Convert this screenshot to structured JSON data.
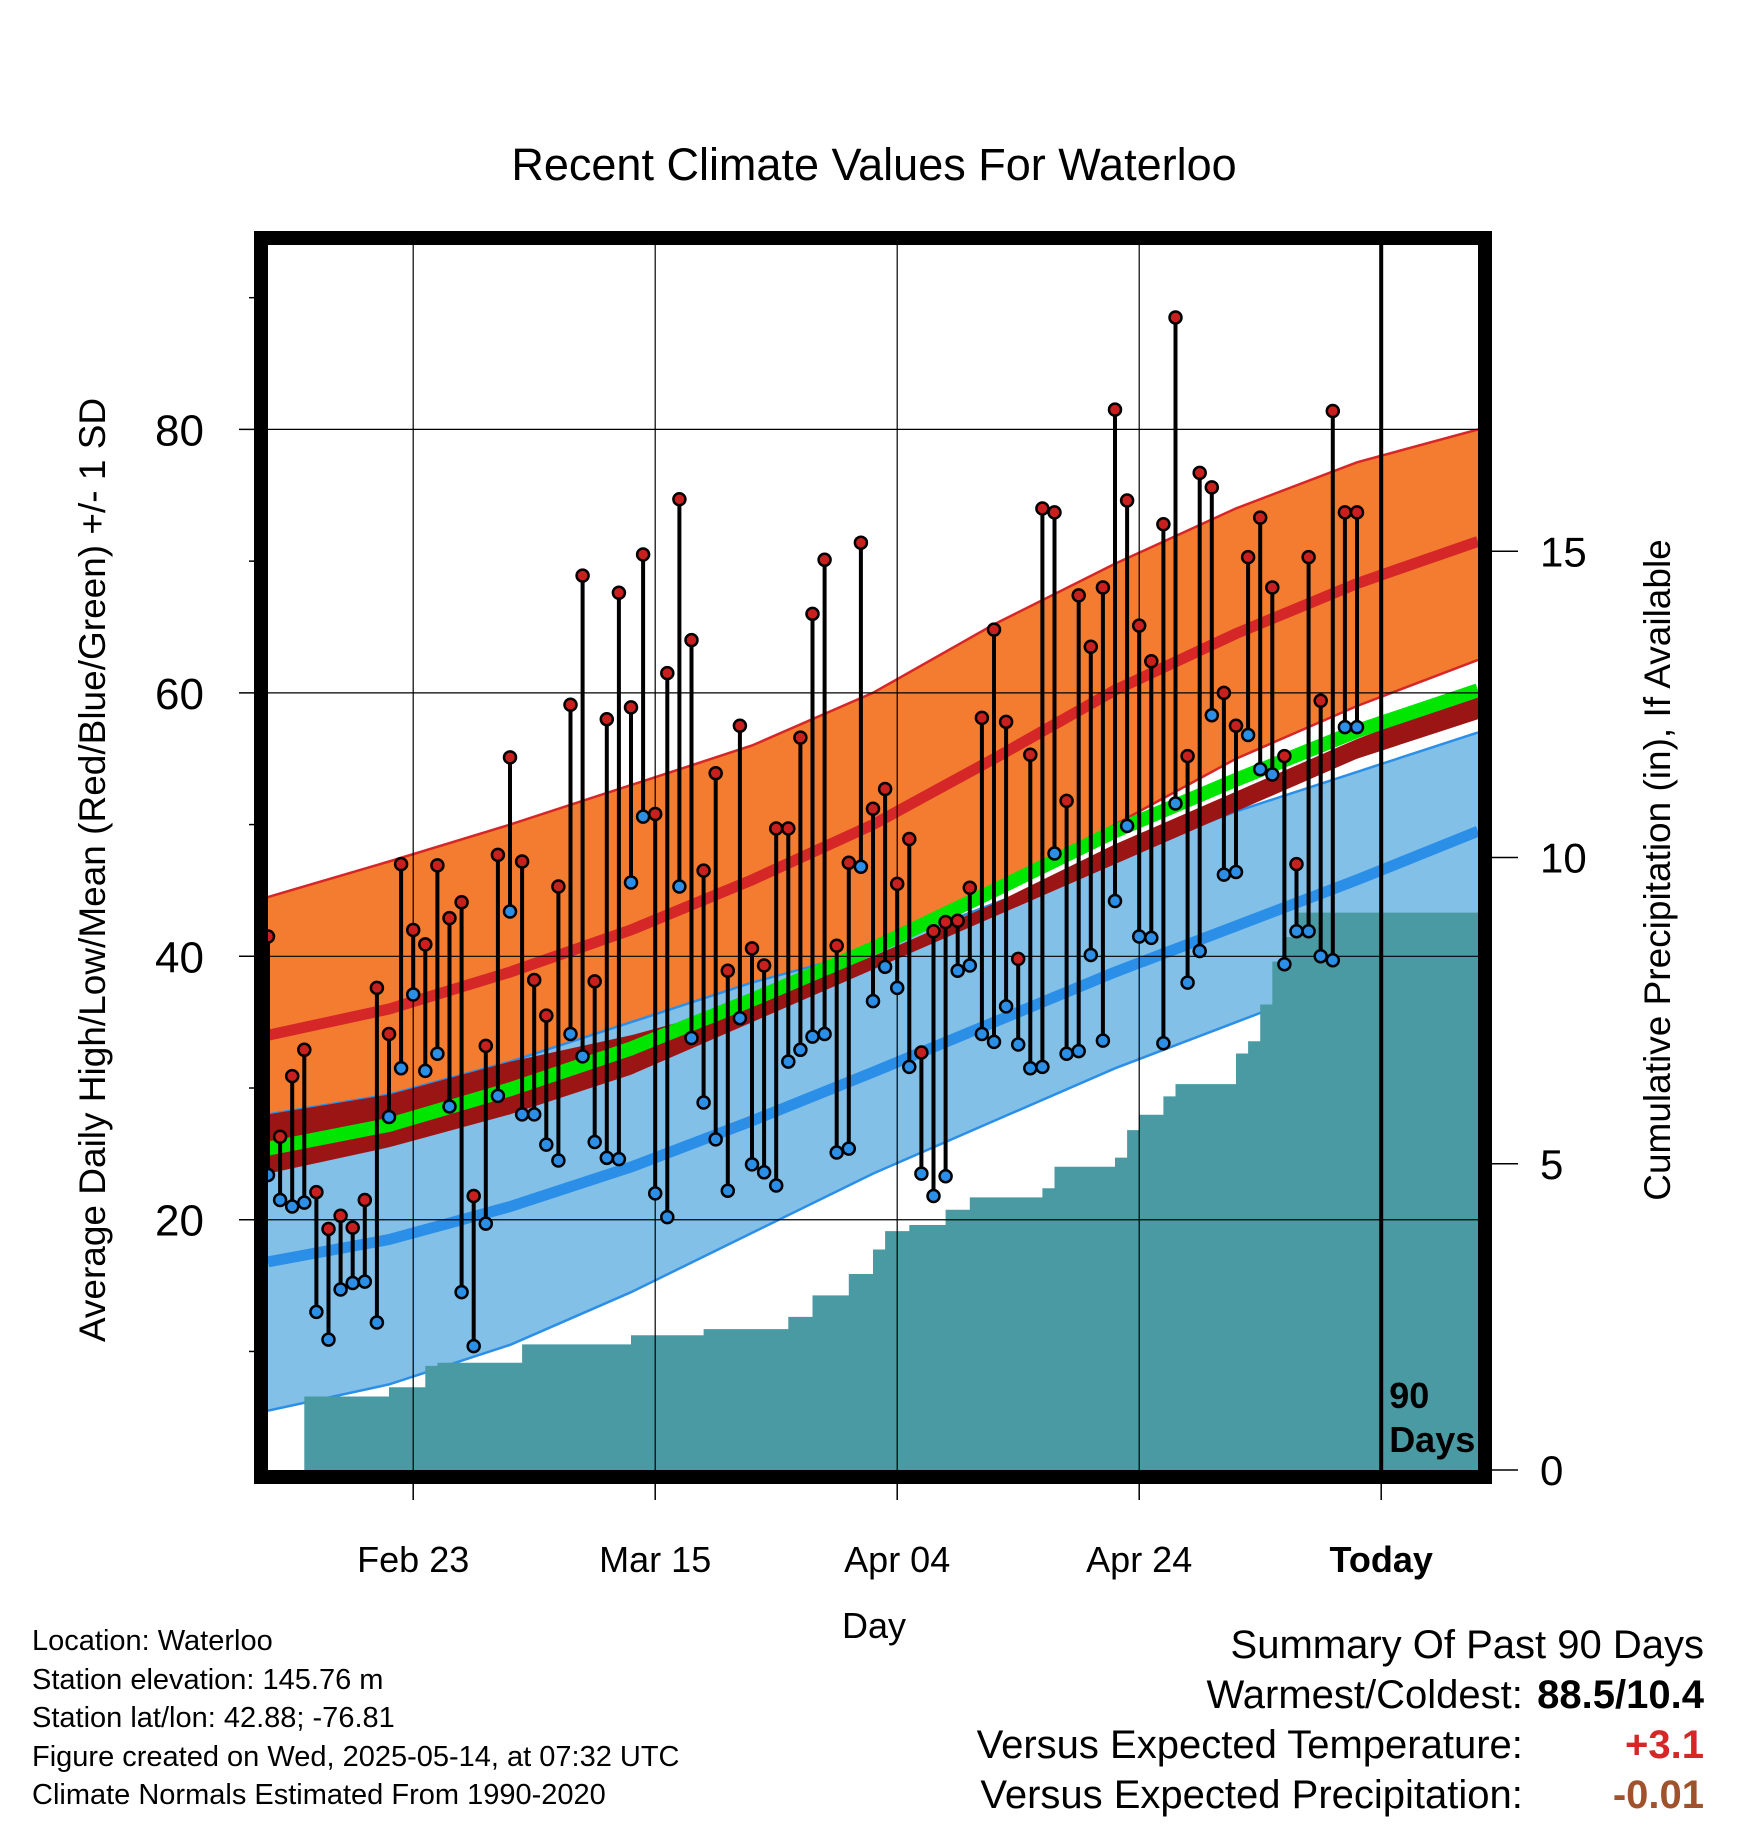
{
  "chart_data": {
    "type": "line",
    "title": "Recent Climate Values For Waterloo",
    "xlabel": "Day",
    "ylabel": "Average Daily High/Low/Mean (Red/Blue/Green) +/- 1 SD",
    "y2label": "Cumulative Precipitation (in), If Available",
    "x_ticks": [
      "Feb 23",
      "Mar 15",
      "Apr 04",
      "Apr 24",
      "Today"
    ],
    "x_tick_days": [
      12,
      32,
      52,
      72,
      92
    ],
    "xlim": [
      0,
      100
    ],
    "ylim": [
      1,
      94
    ],
    "y_ticks": [
      20,
      40,
      60,
      80
    ],
    "y2lim": [
      0,
      20
    ],
    "y2_ticks": [
      0,
      5,
      10,
      15
    ],
    "today_label": "90 Days",
    "grid": true,
    "colors": {
      "high_band": "#f47c30",
      "high_mean": "#d62728",
      "low_band": "#82c0e8",
      "low_mean": "#2b8fe8",
      "mean_band": "#9c1515",
      "mean_line": "#00e600",
      "precip": "#4a9aa4",
      "high_dot": "#c8201e",
      "low_dot": "#2b8fe8"
    },
    "normals": {
      "days": [
        0,
        10,
        20,
        30,
        40,
        50,
        60,
        70,
        80,
        90,
        100
      ],
      "high_mean": [
        34.0,
        36.0,
        38.8,
        42.0,
        45.8,
        50.0,
        55.0,
        60.2,
        64.5,
        68.3,
        71.5
      ],
      "high_sd_upper": [
        44.5,
        47.2,
        50.0,
        53.0,
        56.0,
        60.0,
        65.2,
        69.8,
        74.0,
        77.5,
        80.0
      ],
      "high_sd_lower": [
        24.5,
        26.0,
        28.0,
        31.0,
        35.0,
        40.0,
        45.0,
        50.0,
        55.0,
        59.0,
        62.5
      ],
      "low_mean": [
        16.8,
        18.5,
        21.0,
        24.0,
        27.5,
        31.2,
        35.0,
        38.8,
        42.3,
        45.8,
        49.5
      ],
      "low_sd_upper": [
        28.0,
        29.5,
        32.0,
        35.0,
        38.0,
        40.5,
        44.0,
        47.5,
        51.0,
        54.0,
        57.0
      ],
      "low_sd_lower": [
        5.5,
        7.5,
        10.5,
        14.5,
        19.0,
        23.5,
        27.5,
        31.5,
        35.0,
        38.5,
        42.0
      ],
      "mean_line": [
        25.4,
        27.2,
        29.9,
        33.0,
        36.7,
        40.6,
        45.0,
        49.5,
        53.4,
        57.1,
        60.2
      ],
      "mean_sd_upper": [
        28.0,
        29.5,
        32.0,
        34.0,
        36.5,
        40.0,
        44.0,
        48.5,
        52.5,
        56.5,
        60.0
      ],
      "mean_sd_lower": [
        23.5,
        25.5,
        28.0,
        31.0,
        35.0,
        39.0,
        43.0,
        47.0,
        51.0,
        55.0,
        58.0
      ]
    },
    "series": [
      {
        "name": "High",
        "x": [
          0,
          1,
          2,
          3,
          4,
          5,
          6,
          7,
          8,
          9,
          10,
          11,
          12,
          13,
          14,
          15,
          16,
          17,
          18,
          19,
          20,
          21,
          22,
          23,
          24,
          25,
          26,
          27,
          28,
          29,
          30,
          31,
          32,
          33,
          34,
          35,
          36,
          37,
          38,
          39,
          40,
          41,
          42,
          43,
          44,
          45,
          46,
          47,
          48,
          49,
          50,
          51,
          52,
          53,
          54,
          55,
          56,
          57,
          58,
          59,
          60,
          61,
          62,
          63,
          64,
          65,
          66,
          67,
          68,
          69,
          70,
          71,
          72,
          73,
          74,
          75,
          76,
          77,
          78,
          79,
          80,
          81,
          82,
          83,
          84,
          85,
          86,
          87,
          88,
          89,
          90
        ],
        "values": [
          41.5,
          26.3,
          30.9,
          32.9,
          22.1,
          19.3,
          20.3,
          19.4,
          21.5,
          37.6,
          34.1,
          47.0,
          42.0,
          40.9,
          46.9,
          42.9,
          44.1,
          21.8,
          33.2,
          47.7,
          55.1,
          47.2,
          38.2,
          35.5,
          45.3,
          59.1,
          68.9,
          38.1,
          58.0,
          67.6,
          58.9,
          70.5,
          50.8,
          61.5,
          74.7,
          64.0,
          46.5,
          53.9,
          38.9,
          57.5,
          40.6,
          39.3,
          49.7,
          49.7,
          56.6,
          66.0,
          70.1,
          40.8,
          47.1,
          71.4,
          51.2,
          52.7,
          45.5,
          48.9,
          32.7,
          41.9,
          42.6,
          42.7,
          45.2,
          58.1,
          64.8,
          57.8,
          39.8,
          55.3,
          74.0,
          73.7,
          51.8,
          67.4,
          63.5,
          68.0,
          81.5,
          74.6,
          65.1,
          62.4,
          72.8,
          88.5,
          55.2,
          76.7,
          75.6,
          60.0,
          57.5,
          70.3,
          73.3,
          68.0,
          55.2,
          47.0,
          70.3,
          59.4,
          81.4,
          73.7,
          73.7
        ]
      },
      {
        "name": "Low",
        "x": [
          0,
          1,
          2,
          3,
          4,
          5,
          6,
          7,
          8,
          9,
          10,
          11,
          12,
          13,
          14,
          15,
          16,
          17,
          18,
          19,
          20,
          21,
          22,
          23,
          24,
          25,
          26,
          27,
          28,
          29,
          30,
          31,
          32,
          33,
          34,
          35,
          36,
          37,
          38,
          39,
          40,
          41,
          42,
          43,
          44,
          45,
          46,
          47,
          48,
          49,
          50,
          51,
          52,
          53,
          54,
          55,
          56,
          57,
          58,
          59,
          60,
          61,
          62,
          63,
          64,
          65,
          66,
          67,
          68,
          69,
          70,
          71,
          72,
          73,
          74,
          75,
          76,
          77,
          78,
          79,
          80,
          81,
          82,
          83,
          84,
          85,
          86,
          87,
          88,
          89,
          90
        ],
        "values": [
          23.4,
          21.5,
          21.0,
          21.3,
          13.0,
          10.9,
          14.7,
          15.2,
          15.3,
          12.2,
          27.8,
          31.5,
          37.1,
          31.3,
          32.6,
          28.6,
          14.5,
          10.4,
          19.7,
          29.4,
          43.4,
          28.0,
          28.0,
          25.7,
          24.5,
          34.1,
          32.4,
          25.9,
          24.7,
          24.6,
          45.6,
          50.6,
          22.0,
          20.2,
          45.3,
          33.8,
          28.9,
          26.1,
          22.2,
          35.3,
          24.2,
          23.6,
          22.6,
          32.0,
          32.9,
          33.9,
          34.1,
          25.1,
          25.4,
          46.8,
          36.6,
          39.2,
          37.6,
          31.6,
          23.5,
          21.8,
          23.3,
          38.9,
          39.3,
          34.1,
          33.5,
          36.2,
          33.3,
          31.5,
          31.6,
          47.8,
          32.6,
          32.8,
          40.1,
          33.6,
          44.2,
          49.9,
          41.5,
          41.4,
          33.4,
          51.6,
          38.0,
          40.4,
          58.3,
          46.2,
          46.4,
          56.8,
          54.2,
          53.8,
          39.4,
          41.9,
          41.9,
          40.0,
          39.7,
          57.4,
          57.4
        ]
      }
    ],
    "precip": {
      "x": [
        0,
        2,
        3,
        10,
        13,
        14,
        19,
        21,
        30,
        36,
        43,
        45,
        48,
        50,
        51,
        53,
        56,
        58,
        64,
        65,
        70,
        71,
        72,
        74,
        75,
        80,
        81,
        82,
        83,
        84,
        85,
        90,
        100
      ],
      "y": [
        0.0,
        0.0,
        1.2,
        1.35,
        1.7,
        1.75,
        1.75,
        2.05,
        2.2,
        2.3,
        2.5,
        2.85,
        3.2,
        3.6,
        3.9,
        4.0,
        4.25,
        4.45,
        4.6,
        4.95,
        5.1,
        5.55,
        5.8,
        6.1,
        6.3,
        6.8,
        7.0,
        7.6,
        8.3,
        8.7,
        9.1,
        9.1,
        9.1
      ]
    }
  },
  "footer": {
    "location": "Location: Waterloo",
    "elevation": "Station elevation: 145.76 m",
    "latlon": "Station lat/lon: 42.88; -76.81",
    "created": "Figure created on Wed, 2025-05-14, at 07:32 UTC",
    "normals": "Climate Normals Estimated From 1990-2020"
  },
  "summary": {
    "title": "Summary Of Past 90 Days",
    "warm_cold_label": "Warmest/Coldest:",
    "warm_cold_value": "88.5/10.4",
    "temp_label": "Versus Expected Temperature:",
    "temp_value": "+3.1",
    "precip_label": "Versus Expected Precipitation:",
    "precip_value": "-0.01"
  }
}
